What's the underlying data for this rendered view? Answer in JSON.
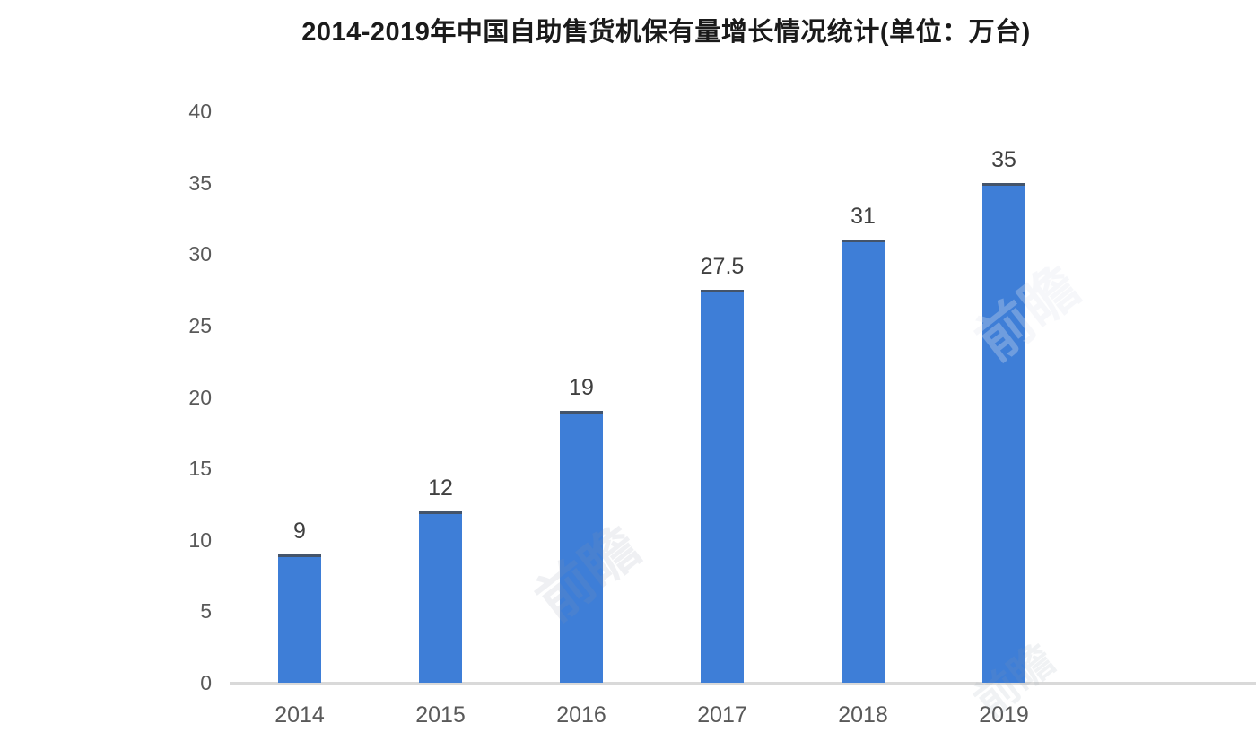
{
  "chart_data": {
    "type": "bar",
    "title": "2014-2019年中国自助售货机保有量增长情况统计(单位：万台)",
    "categories": [
      "2014",
      "2015",
      "2016",
      "2017",
      "2018",
      "2019"
    ],
    "values": [
      9,
      12,
      19,
      27.5,
      31,
      35
    ],
    "value_labels": [
      "9",
      "12",
      "19",
      "27.5",
      "31",
      "35"
    ],
    "xlabel": "",
    "ylabel": "",
    "ylim": [
      0,
      40
    ],
    "yticks": [
      0,
      5,
      10,
      15,
      20,
      25,
      30,
      35,
      40
    ],
    "grid": false,
    "legend_position": "none",
    "colors": {
      "bar": "#3E7ED7",
      "bar_top_edge": "#44546A",
      "axis_line": "#D9D9D9",
      "tick_label": "#595959",
      "value_label": "#404040",
      "title": "#1A1A1A",
      "background": "#FFFFFF"
    }
  },
  "watermark": {
    "text": "前瞻"
  }
}
